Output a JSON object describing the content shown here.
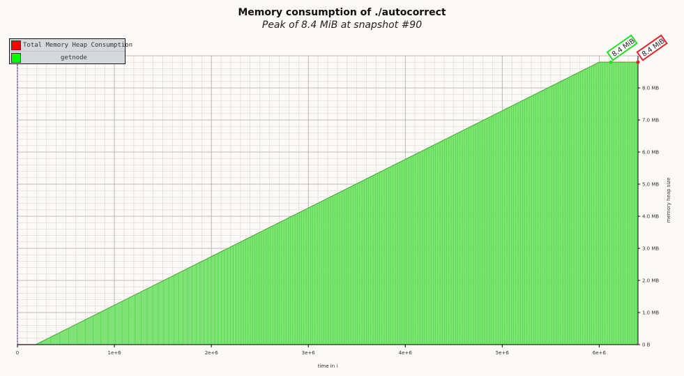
{
  "chart_data": {
    "type": "area",
    "title": "Memory consumption of ./autocorrect",
    "subtitle": "Peak of 8.4 MiB at snapshot #90",
    "xlabel": "time in i",
    "ylabel": "memory heap size",
    "xlim": [
      0,
      6400000
    ],
    "ylim": [
      0,
      9000000
    ],
    "x_ticks": [
      {
        "value": 0,
        "label": "0"
      },
      {
        "value": 1000000,
        "label": "1e+6"
      },
      {
        "value": 2000000,
        "label": "2e+6"
      },
      {
        "value": 3000000,
        "label": "3e+6"
      },
      {
        "value": 4000000,
        "label": "4e+6"
      },
      {
        "value": 5000000,
        "label": "5e+6"
      },
      {
        "value": 6000000,
        "label": "6e+6"
      }
    ],
    "y_ticks": [
      {
        "value": 0,
        "label": "0 B"
      },
      {
        "value": 1000000,
        "label": "1.0 MB"
      },
      {
        "value": 2000000,
        "label": "2.0 MB"
      },
      {
        "value": 3000000,
        "label": "3.0 MB"
      },
      {
        "value": 4000000,
        "label": "4.0 MB"
      },
      {
        "value": 5000000,
        "label": "5.0 MB"
      },
      {
        "value": 6000000,
        "label": "6.0 MB"
      },
      {
        "value": 7000000,
        "label": "7.0 MB"
      },
      {
        "value": 8000000,
        "label": "8.0 MB"
      }
    ],
    "grid": true,
    "legend": "top-left",
    "series": [
      {
        "name": "Total Memory Heap Consumption",
        "color": "#e8202a",
        "x": [
          0,
          190000,
          6000000,
          6120000,
          6400000
        ],
        "y": [
          0,
          0,
          8800000,
          8800000,
          8800000
        ]
      },
      {
        "name": "getnode",
        "color": "#22e022",
        "fill": "#7ae070",
        "x": [
          0,
          190000,
          6000000,
          6120000,
          6400000
        ],
        "y": [
          0,
          0,
          8800000,
          8800000,
          8800000
        ]
      }
    ],
    "peak_labels": [
      {
        "series": "getnode",
        "text": "8.4 MiB",
        "x": 6120000,
        "y": 8800000,
        "color": "#22e022"
      },
      {
        "series": "Total Memory Heap Consumption",
        "text": "8.4 MiB",
        "x": 6400000,
        "y": 8800000,
        "color": "#e8202a"
      }
    ]
  }
}
